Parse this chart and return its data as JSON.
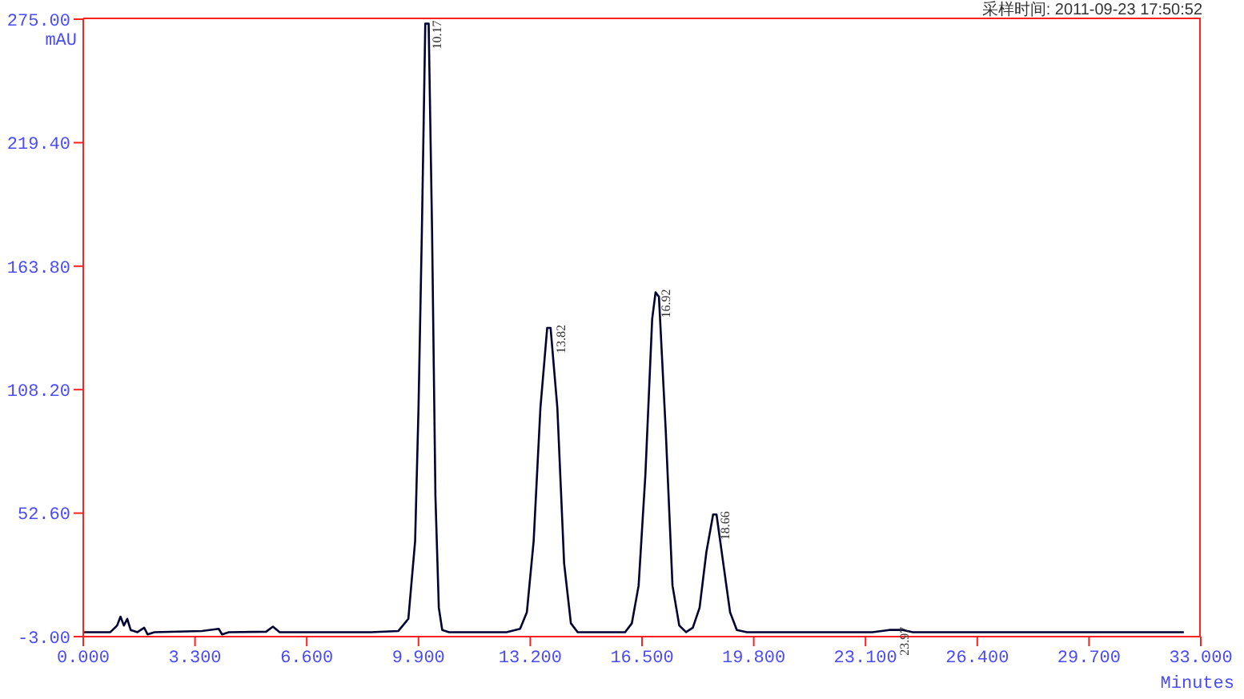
{
  "chart_data": {
    "type": "line",
    "xlabel": "Minutes",
    "ylabel": "mAU",
    "annotations": [
      "采样时间: 2011-09-23 17:50:52",
      {
        "text": "10.17",
        "x": 10.17,
        "y": 273
      },
      {
        "text": "13.82",
        "x": 13.82,
        "y": 136
      },
      {
        "text": "16.92",
        "x": 16.92,
        "y": 152
      },
      {
        "text": "18.66",
        "x": 18.66,
        "y": 52
      },
      {
        "text": "23.97",
        "x": 23.97,
        "y": 0
      }
    ],
    "x": [
      0,
      0.8,
      1.0,
      1.1,
      1.2,
      1.3,
      1.4,
      1.6,
      1.8,
      1.9,
      2.1,
      3.5,
      4.0,
      4.1,
      4.3,
      5.4,
      5.6,
      5.8,
      8.5,
      9.3,
      9.6,
      9.8,
      9.9,
      10.0,
      10.1,
      10.2,
      10.3,
      10.4,
      10.5,
      10.6,
      10.8,
      12.5,
      12.9,
      13.1,
      13.3,
      13.5,
      13.7,
      13.8,
      14.0,
      14.2,
      14.4,
      14.6,
      16.0,
      16.2,
      16.4,
      16.6,
      16.8,
      16.9,
      17.0,
      17.2,
      17.4,
      17.6,
      17.8,
      18.0,
      18.2,
      18.4,
      18.6,
      18.7,
      18.9,
      19.1,
      19.3,
      19.6,
      23.3,
      23.8,
      24.2,
      24.5,
      32.5
    ],
    "series": [
      {
        "color": "#000033",
        "values": [
          -1,
          -1,
          2,
          6,
          2,
          5,
          0,
          -1,
          1,
          -2,
          -1,
          -0.5,
          0.5,
          -2,
          -1,
          -0.8,
          1.5,
          -1,
          -1,
          -0.5,
          5,
          40,
          100,
          180,
          273,
          273,
          180,
          60,
          10,
          0,
          -1,
          -1,
          0.5,
          8,
          40,
          100,
          136,
          136,
          100,
          30,
          3,
          -1,
          -1,
          3,
          20,
          70,
          140,
          152,
          150,
          90,
          20,
          2,
          -1,
          1,
          10,
          35,
          52,
          52,
          30,
          8,
          0,
          -1,
          -1,
          0,
          0,
          -1,
          -1
        ]
      }
    ],
    "xlim": [
      0,
      33
    ],
    "ylim": [
      -3,
      275
    ],
    "xticks": [
      {
        "value": 0,
        "label": "0.000"
      },
      {
        "value": 3.3,
        "label": "3.300"
      },
      {
        "value": 6.6,
        "label": "6.600"
      },
      {
        "value": 9.9,
        "label": "9.900"
      },
      {
        "value": 13.2,
        "label": "13.200"
      },
      {
        "value": 16.5,
        "label": "16.500"
      },
      {
        "value": 19.8,
        "label": "19.800"
      },
      {
        "value": 23.1,
        "label": "23.100"
      },
      {
        "value": 26.4,
        "label": "26.400"
      },
      {
        "value": 29.7,
        "label": "29.700"
      },
      {
        "value": 33,
        "label": "33.000"
      }
    ],
    "yticks": [
      {
        "value": -3,
        "label": "-3.00"
      },
      {
        "value": 52.6,
        "label": "52.60"
      },
      {
        "value": 108.2,
        "label": "108.20"
      },
      {
        "value": 163.8,
        "label": "163.80"
      },
      {
        "value": 219.4,
        "label": "219.40"
      },
      {
        "value": 275,
        "label": "275.00"
      }
    ],
    "grid": false,
    "legend": false,
    "marker": "none",
    "line_style": "solid"
  }
}
